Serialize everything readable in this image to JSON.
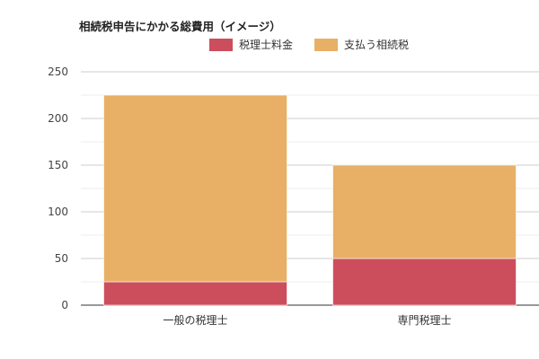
{
  "chart_data": {
    "type": "bar",
    "stacked": true,
    "title": "相続税申告にかかる総費用（イメージ）",
    "categories": [
      "一般の税理士",
      "専門税理士"
    ],
    "series": [
      {
        "name": "税理士料金",
        "values": [
          25,
          50
        ],
        "color": "#cc4e5c"
      },
      {
        "name": "支払う相続税",
        "values": [
          200,
          100
        ],
        "color": "#e8b066"
      }
    ],
    "ylim": [
      0,
      250
    ],
    "yticks": [
      0,
      50,
      100,
      150,
      200,
      250
    ],
    "grid": true,
    "legend": "top"
  }
}
